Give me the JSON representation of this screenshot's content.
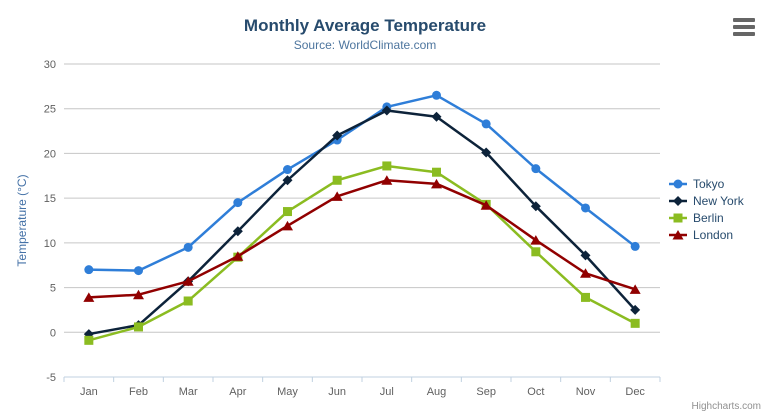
{
  "chart_data": {
    "type": "line",
    "title": "Monthly Average Temperature",
    "subtitle": "Source: WorldClimate.com",
    "xlabel": "",
    "ylabel": "Temperature (°C)",
    "ylim": [
      -5,
      30
    ],
    "yticks": [
      -5,
      0,
      5,
      10,
      15,
      20,
      25,
      30
    ],
    "grid": true,
    "legend_position": "right",
    "categories": [
      "Jan",
      "Feb",
      "Mar",
      "Apr",
      "May",
      "Jun",
      "Jul",
      "Aug",
      "Sep",
      "Oct",
      "Nov",
      "Dec"
    ],
    "series": [
      {
        "name": "Tokyo",
        "color": "#2f7ed8",
        "marker": "circle",
        "values": [
          7.0,
          6.9,
          9.5,
          14.5,
          18.2,
          21.5,
          25.2,
          26.5,
          23.3,
          18.3,
          13.9,
          9.6
        ]
      },
      {
        "name": "New York",
        "color": "#0d233a",
        "marker": "diamond",
        "values": [
          -0.2,
          0.8,
          5.7,
          11.3,
          17.0,
          22.0,
          24.8,
          24.1,
          20.1,
          14.1,
          8.6,
          2.5
        ]
      },
      {
        "name": "Berlin",
        "color": "#8bbc21",
        "marker": "square",
        "values": [
          -0.9,
          0.6,
          3.5,
          8.4,
          13.5,
          17.0,
          18.6,
          17.9,
          14.3,
          9.0,
          3.9,
          1.0
        ]
      },
      {
        "name": "London",
        "color": "#910000",
        "marker": "triangle",
        "values": [
          3.9,
          4.2,
          5.7,
          8.5,
          11.9,
          15.2,
          17.0,
          16.6,
          14.2,
          10.3,
          6.6,
          4.8
        ]
      }
    ],
    "colors": {
      "title": "#274b6d",
      "subtitle": "#4d759e",
      "axis_label": "#606060",
      "axis_title": "#4572a7",
      "gridline": "#c6c6c6",
      "axis_line": "#c0d0e0",
      "legend_text": "#274b6d",
      "credits": "#909090"
    }
  },
  "credits": {
    "label": "Highcharts.com"
  }
}
